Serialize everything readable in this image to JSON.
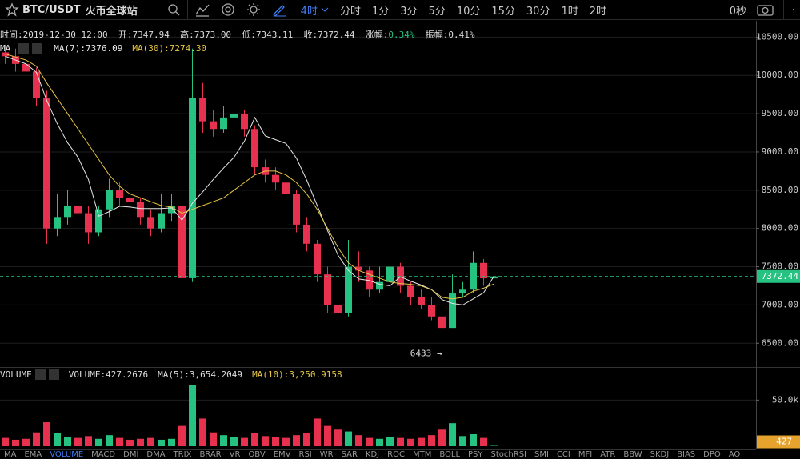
{
  "toolbar": {
    "symbol": "BTC/USDT",
    "exchange": "火币全球站",
    "interval": "4时",
    "intervals": [
      "分时",
      "1分",
      "3分",
      "5分",
      "10分",
      "15分",
      "30分",
      "1时",
      "2时"
    ],
    "countdown": "0秒"
  },
  "info": {
    "time": "时间:2019-12-30 12:00",
    "open": "开:7347.94",
    "high": "高:7373.00",
    "low": "低:7343.11",
    "close": "收:7372.44",
    "change_label": "涨幅:",
    "change": "0.34%",
    "amplitude": "振幅:0.41%"
  },
  "tabs": [
    "MA",
    "EMA",
    "VOLUME",
    "MACD",
    "DMI",
    "DMA",
    "TRIX",
    "BRAR",
    "VR",
    "OBV",
    "EMV",
    "RSI",
    "WR",
    "SAR",
    "KDJ",
    "ROC",
    "MTM",
    "BOLL",
    "PSY",
    "StochRSI",
    "SMI",
    "CCI",
    "MFI",
    "ATR",
    "BBW",
    "SKDJ",
    "BIAS",
    "DPO",
    "AO"
  ],
  "chart_data": [
    {
      "type": "candlestick",
      "indicator": "MA",
      "up_color": "#26c281",
      "down_color": "#e8304f",
      "annotation": "6433 →",
      "open": [
        10300,
        10250,
        10150,
        10050,
        9700,
        8000,
        8150,
        8300,
        8200,
        7950,
        8250,
        8500,
        8400,
        8350,
        8150,
        8000,
        8200,
        8300,
        7350,
        9700,
        9400,
        9300,
        9450,
        9500,
        9300,
        8800,
        8700,
        8600,
        8450,
        8050,
        7800,
        7400,
        7000,
        6900,
        7500,
        7450,
        7200,
        7300,
        7500,
        7250,
        7100,
        7000,
        6850,
        6700,
        7150,
        7200,
        7550,
        7347.94
      ],
      "high": [
        10400,
        10350,
        10250,
        10100,
        9800,
        8450,
        8500,
        8450,
        8300,
        8300,
        8650,
        8600,
        8550,
        8400,
        8250,
        8450,
        8450,
        8350,
        10350,
        9900,
        9550,
        9600,
        9650,
        9550,
        9350,
        8900,
        8800,
        8700,
        8500,
        8150,
        7850,
        7500,
        7150,
        7850,
        7700,
        7500,
        7500,
        7600,
        7550,
        7300,
        7200,
        7100,
        6900,
        7400,
        7300,
        7700,
        7600,
        7373
      ],
      "low": [
        10150,
        10050,
        9950,
        9600,
        7800,
        7900,
        8050,
        8050,
        7800,
        7900,
        8150,
        8300,
        8250,
        8050,
        7900,
        7950,
        8100,
        7300,
        7300,
        9250,
        9200,
        9250,
        9350,
        9200,
        8700,
        8600,
        8500,
        8350,
        7950,
        7700,
        7300,
        6900,
        6550,
        6850,
        7300,
        7100,
        7150,
        7250,
        7150,
        7000,
        6950,
        6800,
        6433,
        6700,
        7100,
        7150,
        7250,
        7343.11
      ],
      "close": [
        10250,
        10150,
        10050,
        9700,
        8000,
        8150,
        8300,
        8200,
        7950,
        8250,
        8500,
        8400,
        8350,
        8150,
        8000,
        8200,
        8300,
        7350,
        9700,
        9400,
        9300,
        9450,
        9500,
        9300,
        8800,
        8700,
        8600,
        8450,
        8050,
        7800,
        7400,
        7000,
        6900,
        7500,
        7450,
        7200,
        7300,
        7500,
        7250,
        7100,
        7000,
        6850,
        6700,
        7150,
        7200,
        7550,
        7347.94,
        7372.44
      ],
      "series": [
        {
          "name": "MA(7):7376.09",
          "color": "#e6e6e6",
          "values": [
            10250,
            10200,
            10150,
            10040,
            9670,
            9370,
            9120,
            8930,
            8640,
            8160,
            8220,
            8290,
            8280,
            8260,
            8260,
            8260,
            8270,
            8110,
            8330,
            8480,
            8640,
            8790,
            8930,
            9140,
            9450,
            9210,
            9160,
            9110,
            8920,
            8630,
            8300,
            7970,
            7650,
            7450,
            7340,
            7320,
            7270,
            7250,
            7370,
            7310,
            7260,
            7200,
            7070,
            7020,
            7000,
            7080,
            7160,
            7376.09
          ]
        },
        {
          "name": "MA(30):7274.30",
          "color": "#e6c547",
          "values": [
            10280,
            10240,
            10200,
            10120,
            9900,
            9700,
            9500,
            9300,
            9100,
            8900,
            8700,
            8550,
            8450,
            8400,
            8350,
            8300,
            8280,
            8200,
            8250,
            8300,
            8350,
            8400,
            8500,
            8600,
            8700,
            8750,
            8750,
            8700,
            8600,
            8450,
            8250,
            8000,
            7750,
            7550,
            7450,
            7400,
            7350,
            7300,
            7280,
            7270,
            7250,
            7200,
            7100,
            7080,
            7100,
            7180,
            7220,
            7274.3
          ]
        }
      ],
      "ylim": [
        6200,
        10650
      ],
      "yticks": [
        {
          "value": 6500,
          "label": "6500.00"
        },
        {
          "value": 7000,
          "label": "7000.00"
        },
        {
          "value": 7500,
          "label": "7500.00"
        },
        {
          "value": 8000,
          "label": "8000.00"
        },
        {
          "value": 8500,
          "label": "8500.00"
        },
        {
          "value": 9000,
          "label": "9000.00"
        },
        {
          "value": 9500,
          "label": "9500.00"
        },
        {
          "value": 10000,
          "label": "10000.00"
        },
        {
          "value": 10500,
          "label": "10500.00"
        }
      ],
      "grid": true
    },
    {
      "type": "volume",
      "indicator": "VOLUME",
      "legend": [
        "VOLUME:427.2676",
        "MA(5):3,654.2049",
        "MA(10):3,250.9158"
      ],
      "values": [
        9000,
        7000,
        8000,
        15000,
        26000,
        14000,
        10000,
        9000,
        11000,
        8000,
        12000,
        9000,
        7000,
        8000,
        9000,
        7000,
        8000,
        22000,
        66000,
        30000,
        15000,
        12000,
        10000,
        9000,
        14000,
        11000,
        10000,
        9000,
        12000,
        14000,
        30000,
        22000,
        18000,
        16000,
        12000,
        9000,
        8000,
        10000,
        9000,
        8000,
        9000,
        12000,
        18000,
        25000,
        11000,
        13000,
        9000,
        427.2676
      ],
      "last_value_label": "427",
      "tag_color": "#e5a32e",
      "ylim": [
        0,
        85000
      ],
      "yticks": [
        {
          "value": 50000,
          "label": "50.0k"
        }
      ],
      "grid": true
    }
  ]
}
